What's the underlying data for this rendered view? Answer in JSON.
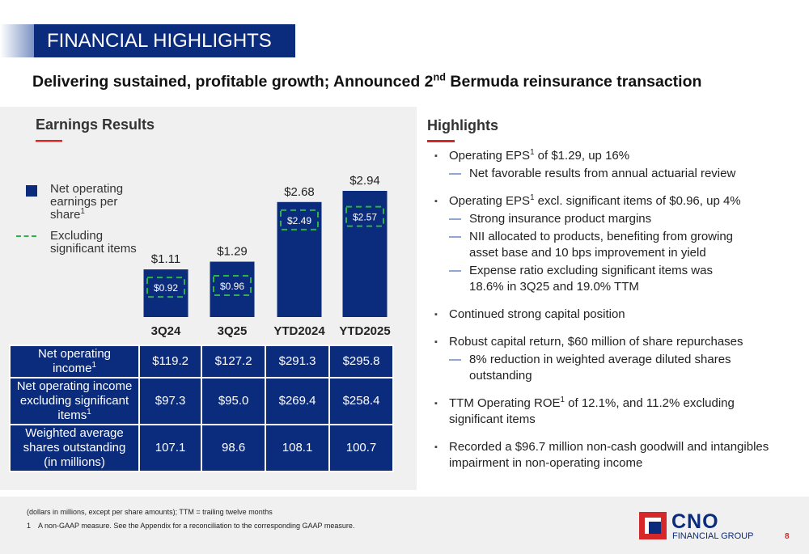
{
  "header": {
    "title": "FINANCIAL HIGHLIGHTS",
    "subtitle": {
      "text": [
        "Delivering sustained, profitable growth; Announced 2",
        " Bermuda reinsurance transaction"
      ],
      "sup": [
        "nd"
      ]
    }
  },
  "chart_data": {
    "type": "bar",
    "title": "Earnings Results",
    "categories": [
      "3Q24",
      "3Q25",
      "YTD2024",
      "YTD2025"
    ],
    "series": [
      {
        "name": "Net operating earnings per share",
        "name_sup": "1",
        "color": "#0b2b7c",
        "style": "solid",
        "values": [
          1.11,
          1.29,
          2.68,
          2.94
        ],
        "value_labels": [
          "$1.11",
          "$1.29",
          "$2.68",
          "$2.94"
        ]
      },
      {
        "name": "Excluding significant items",
        "color": "#2db34a",
        "style": "dashed",
        "values": [
          0.92,
          0.96,
          2.49,
          2.57
        ],
        "value_labels": [
          "$0.92",
          "$0.96",
          "$2.49",
          "$2.57"
        ]
      }
    ]
  },
  "table": {
    "rows": [
      {
        "label": {
          "text": [
            "Net operating income"
          ],
          "sup": [
            "1"
          ]
        },
        "values": [
          "$119.2",
          "$127.2",
          "$291.3",
          "$295.8"
        ]
      },
      {
        "label": {
          "text": [
            "Net operating income excluding significant items"
          ],
          "sup": [
            "1"
          ]
        },
        "values": [
          "$97.3",
          "$95.0",
          "$269.4",
          "$258.4"
        ]
      },
      {
        "label": "Weighted average shares outstanding (in millions)",
        "values": [
          "107.1",
          "98.6",
          "108.1",
          "100.7"
        ]
      }
    ]
  },
  "highlights": {
    "title": "Highlights",
    "items": [
      {
        "text": {
          "text": [
            "Operating EPS",
            " of $1.29, up 16%"
          ],
          "sup": [
            "1"
          ]
        },
        "subs": [
          "Net favorable results from annual actuarial review"
        ]
      },
      {
        "text": {
          "text": [
            "Operating EPS",
            " excl. significant items of $0.96, up 4%"
          ],
          "sup": [
            "1"
          ]
        },
        "subs": [
          "Strong insurance product margins",
          "NII allocated to products, benefiting from growing asset base and 10 bps improvement in yield",
          "Expense ratio excluding significant items was 18.6% in 3Q25 and 19.0% TTM"
        ]
      },
      {
        "text": "Continued strong capital position"
      },
      {
        "text": "Robust capital return, $60 million of share repurchases",
        "subs": [
          "8% reduction in weighted average diluted shares outstanding"
        ]
      },
      {
        "text": {
          "text": [
            "TTM Operating ROE",
            " of 12.1%, and 11.2% excluding significant items"
          ],
          "sup": [
            "1"
          ]
        }
      },
      {
        "text": "Recorded a $96.7 million non-cash goodwill and intangibles impairment in non-operating income"
      }
    ]
  },
  "footer": {
    "note": "(dollars in millions, except per share amounts); TTM = trailing twelve months",
    "footnote_number": "1",
    "footnote": "A non-GAAP measure. See the Appendix for a reconciliation to the corresponding GAAP measure.",
    "logo": "CNO",
    "logo_sub": "FINANCIAL GROUP",
    "page": "8"
  }
}
